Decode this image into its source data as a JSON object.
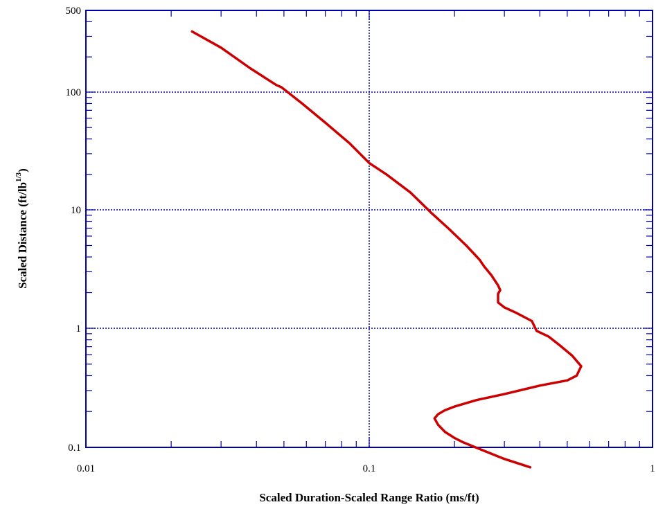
{
  "chart_data": {
    "type": "line",
    "title": "",
    "xlabel": "Scaled Duration-Scaled Range  Ratio (ms/ft)",
    "ylabel_main": "Scaled Distance (ft/lb",
    "ylabel_sup": "1/3",
    "ylabel_close": ")",
    "x_scale": "log",
    "y_scale": "log",
    "xlim": [
      0.01,
      1
    ],
    "ylim": [
      0.1,
      500
    ],
    "x_ticks": [
      0.01,
      0.1,
      1
    ],
    "x_tick_labels": [
      "0.01",
      "0.1",
      "1"
    ],
    "y_ticks": [
      0.1,
      1,
      10,
      100,
      500
    ],
    "y_tick_labels": [
      "0.1",
      "1",
      "10",
      "100",
      "500"
    ],
    "grid": true,
    "colors": {
      "series": "#cc0000",
      "grid": "#0000aa",
      "frame": "#0000aa"
    },
    "series": [
      {
        "x": [
          0.0237,
          0.03,
          0.038,
          0.047,
          0.049,
          0.058,
          0.07,
          0.085,
          0.1,
          0.115,
          0.14,
          0.165,
          0.19,
          0.22,
          0.245,
          0.255,
          0.27,
          0.285,
          0.29,
          0.285,
          0.285,
          0.3,
          0.33,
          0.375,
          0.39,
          0.43,
          0.47,
          0.52,
          0.56,
          0.54,
          0.5,
          0.4,
          0.3,
          0.24,
          0.2,
          0.185,
          0.175,
          0.17,
          0.175,
          0.185,
          0.2,
          0.215,
          0.25,
          0.3,
          0.37
        ],
        "y": [
          330,
          240,
          160,
          115,
          110,
          80,
          55,
          37,
          25,
          20,
          14,
          9.5,
          7,
          5,
          3.8,
          3.3,
          2.8,
          2.3,
          2.1,
          1.95,
          1.65,
          1.5,
          1.35,
          1.15,
          0.95,
          0.85,
          0.72,
          0.59,
          0.48,
          0.4,
          0.365,
          0.33,
          0.28,
          0.25,
          0.22,
          0.205,
          0.19,
          0.175,
          0.155,
          0.135,
          0.12,
          0.11,
          0.095,
          0.08,
          0.068
        ]
      }
    ]
  }
}
